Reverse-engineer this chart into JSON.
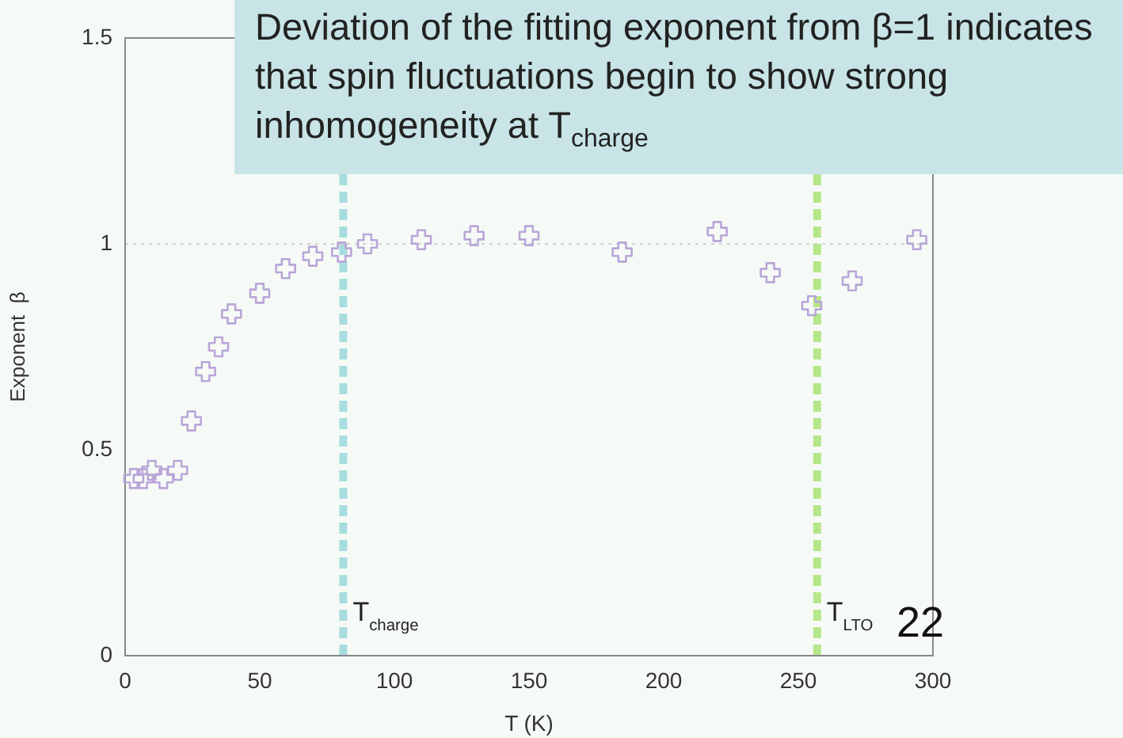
{
  "chart_data": {
    "type": "scatter",
    "xlabel": "T (K)",
    "ylabel": "Exponent  β",
    "x": [
      3.2,
      6.7,
      9.9,
      14.2,
      19.5,
      24.6,
      29.9,
      34.7,
      39.5,
      50,
      59.6,
      69.7,
      80.4,
      90,
      110,
      129.6,
      150,
      184.6,
      219.9,
      239.6,
      255,
      270,
      294
    ],
    "series": [
      {
        "color": "#b9a6d8",
        "values": [
          0.43,
          0.43,
          0.45,
          0.43,
          0.45,
          0.57,
          0.69,
          0.75,
          0.83,
          0.88,
          0.94,
          0.97,
          0.98,
          1.0,
          1.01,
          1.02,
          1.02,
          0.98,
          1.03,
          0.93,
          0.85,
          0.91,
          1.01
        ]
      }
    ],
    "marker": "cross",
    "grid": false,
    "legend": false,
    "xlim": [
      0,
      300
    ],
    "xticks": [
      0,
      50,
      100,
      150,
      200,
      250,
      300
    ],
    "ylim": [
      0,
      1.5
    ],
    "yticks": [
      0,
      0.5,
      1,
      1.5
    ],
    "ref_lines": [
      {
        "axis": "x",
        "value": 81,
        "label": "T$_{charge}$",
        "color": "#a8dde0",
        "line_style": "dashed"
      },
      {
        "axis": "x",
        "value": 257,
        "label": "T$_{LTO}$",
        "color": "#b6e68a",
        "line_style": "dashed"
      },
      {
        "axis": "y",
        "value": 1,
        "label": null,
        "color": "#d0d0d0",
        "line_style": "dotted"
      }
    ],
    "annotations": [
      "Deviation of the fitting exponent from β=1 indicates that spin fluctuations begin to show strong inhomogeneity at T$_{charge}$",
      "22"
    ]
  }
}
